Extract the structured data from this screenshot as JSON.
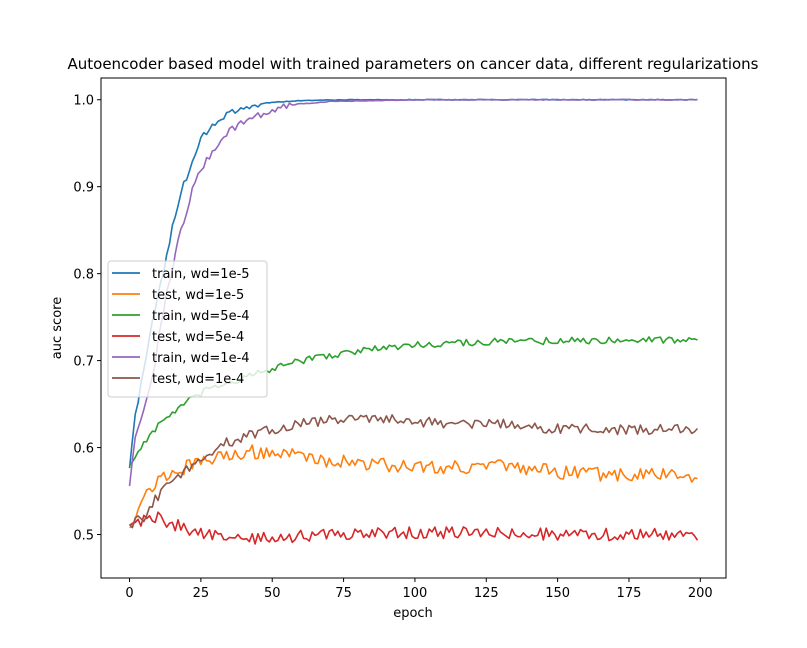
{
  "chart_data": {
    "type": "line",
    "title": "Autoencoder based model with trained parameters on cancer data, different regularizations",
    "xlabel": "epoch",
    "ylabel": "auc score",
    "xlim": [
      -10,
      209
    ],
    "ylim": [
      0.45,
      1.025
    ],
    "xticks": [
      0,
      25,
      50,
      75,
      100,
      125,
      150,
      175,
      200
    ],
    "yticks": [
      0.5,
      0.6,
      0.7,
      0.8,
      0.9,
      1.0
    ],
    "ytick_labels": [
      "0.5",
      "0.6",
      "0.7",
      "0.8",
      "0.9",
      "1.0"
    ],
    "grid": false,
    "legend_position": "center-left",
    "x_start": 0,
    "x_end": 199,
    "series": [
      {
        "name": "train, wd=1e-5",
        "color": "#1f77b4",
        "points": [
          [
            0,
            0.578
          ],
          [
            2,
            0.635
          ],
          [
            5,
            0.69
          ],
          [
            8,
            0.745
          ],
          [
            10,
            0.775
          ],
          [
            13,
            0.82
          ],
          [
            15,
            0.855
          ],
          [
            17,
            0.875
          ],
          [
            19,
            0.905
          ],
          [
            21,
            0.915
          ],
          [
            23,
            0.94
          ],
          [
            25,
            0.955
          ],
          [
            28,
            0.968
          ],
          [
            32,
            0.978
          ],
          [
            36,
            0.985
          ],
          [
            40,
            0.99
          ],
          [
            45,
            0.995
          ],
          [
            50,
            0.997
          ],
          [
            60,
            0.999
          ],
          [
            75,
            1.0
          ],
          [
            100,
            1.0
          ],
          [
            150,
            1.0
          ],
          [
            199,
            1.0
          ]
        ],
        "noise": 0.004
      },
      {
        "name": "test, wd=1e-5",
        "color": "#ff7f0e",
        "points": [
          [
            0,
            0.51
          ],
          [
            3,
            0.53
          ],
          [
            6,
            0.548
          ],
          [
            10,
            0.562
          ],
          [
            15,
            0.572
          ],
          [
            20,
            0.578
          ],
          [
            25,
            0.582
          ],
          [
            30,
            0.588
          ],
          [
            35,
            0.592
          ],
          [
            40,
            0.595
          ],
          [
            45,
            0.595
          ],
          [
            50,
            0.595
          ],
          [
            60,
            0.59
          ],
          [
            70,
            0.585
          ],
          [
            80,
            0.583
          ],
          [
            90,
            0.58
          ],
          [
            100,
            0.578
          ],
          [
            110,
            0.578
          ],
          [
            120,
            0.578
          ],
          [
            130,
            0.578
          ],
          [
            140,
            0.575
          ],
          [
            150,
            0.572
          ],
          [
            160,
            0.57
          ],
          [
            170,
            0.568
          ],
          [
            180,
            0.57
          ],
          [
            190,
            0.568
          ],
          [
            199,
            0.566
          ]
        ],
        "noise": 0.008
      },
      {
        "name": "train, wd=5e-4",
        "color": "#2ca02c",
        "points": [
          [
            0,
            0.58
          ],
          [
            3,
            0.595
          ],
          [
            6,
            0.61
          ],
          [
            10,
            0.625
          ],
          [
            15,
            0.64
          ],
          [
            20,
            0.652
          ],
          [
            25,
            0.662
          ],
          [
            30,
            0.67
          ],
          [
            40,
            0.68
          ],
          [
            50,
            0.69
          ],
          [
            60,
            0.7
          ],
          [
            70,
            0.706
          ],
          [
            80,
            0.711
          ],
          [
            90,
            0.715
          ],
          [
            100,
            0.718
          ],
          [
            110,
            0.72
          ],
          [
            120,
            0.721
          ],
          [
            130,
            0.722
          ],
          [
            140,
            0.722
          ],
          [
            150,
            0.723
          ],
          [
            160,
            0.723
          ],
          [
            170,
            0.724
          ],
          [
            180,
            0.724
          ],
          [
            190,
            0.724
          ],
          [
            199,
            0.726
          ]
        ],
        "noise": 0.004
      },
      {
        "name": "test, wd=5e-4",
        "color": "#d62728",
        "points": [
          [
            0,
            0.51
          ],
          [
            3,
            0.515
          ],
          [
            7,
            0.52
          ],
          [
            10,
            0.52
          ],
          [
            13,
            0.515
          ],
          [
            17,
            0.51
          ],
          [
            22,
            0.505
          ],
          [
            28,
            0.5
          ],
          [
            35,
            0.495
          ],
          [
            45,
            0.495
          ],
          [
            55,
            0.497
          ],
          [
            70,
            0.5
          ],
          [
            90,
            0.502
          ],
          [
            110,
            0.502
          ],
          [
            130,
            0.502
          ],
          [
            150,
            0.5
          ],
          [
            170,
            0.5
          ],
          [
            185,
            0.5
          ],
          [
            199,
            0.5
          ]
        ],
        "noise": 0.007
      },
      {
        "name": "train, wd=1e-4",
        "color": "#9467bd",
        "points": [
          [
            0,
            0.555
          ],
          [
            2,
            0.61
          ],
          [
            5,
            0.64
          ],
          [
            8,
            0.68
          ],
          [
            10,
            0.72
          ],
          [
            13,
            0.78
          ],
          [
            15,
            0.8
          ],
          [
            17,
            0.84
          ],
          [
            19,
            0.86
          ],
          [
            21,
            0.885
          ],
          [
            23,
            0.905
          ],
          [
            26,
            0.925
          ],
          [
            29,
            0.94
          ],
          [
            32,
            0.955
          ],
          [
            36,
            0.967
          ],
          [
            40,
            0.975
          ],
          [
            45,
            0.982
          ],
          [
            50,
            0.988
          ],
          [
            55,
            0.992
          ],
          [
            60,
            0.995
          ],
          [
            70,
            0.998
          ],
          [
            85,
            0.999
          ],
          [
            100,
            1.0
          ],
          [
            150,
            1.0
          ],
          [
            199,
            1.0
          ]
        ],
        "noise": 0.004
      },
      {
        "name": "test, wd=1e-4",
        "color": "#8c564b",
        "points": [
          [
            0,
            0.51
          ],
          [
            5,
            0.52
          ],
          [
            10,
            0.545
          ],
          [
            15,
            0.56
          ],
          [
            20,
            0.575
          ],
          [
            25,
            0.588
          ],
          [
            30,
            0.598
          ],
          [
            35,
            0.607
          ],
          [
            40,
            0.612
          ],
          [
            50,
            0.62
          ],
          [
            60,
            0.628
          ],
          [
            70,
            0.632
          ],
          [
            80,
            0.632
          ],
          [
            90,
            0.634
          ],
          [
            100,
            0.63
          ],
          [
            110,
            0.628
          ],
          [
            120,
            0.627
          ],
          [
            130,
            0.627
          ],
          [
            140,
            0.624
          ],
          [
            150,
            0.622
          ],
          [
            160,
            0.622
          ],
          [
            170,
            0.62
          ],
          [
            180,
            0.62
          ],
          [
            190,
            0.622
          ],
          [
            199,
            0.62
          ]
        ],
        "noise": 0.006
      }
    ]
  }
}
